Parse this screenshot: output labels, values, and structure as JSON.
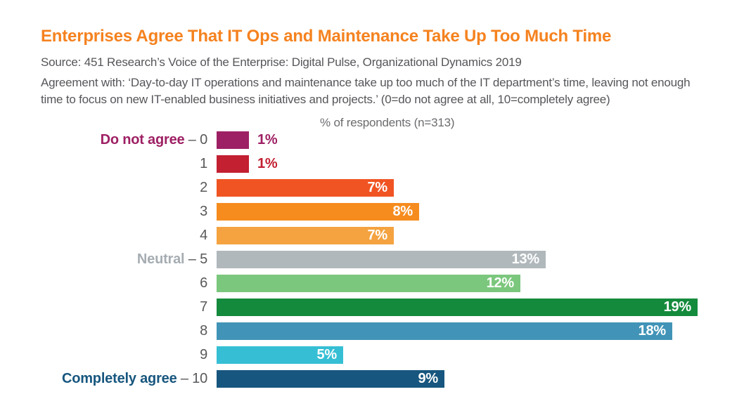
{
  "header": {
    "title": "Enterprises Agree That IT Ops and Maintenance Take Up Too Much Time",
    "source": "Source: 451 Research’s Voice of the Enterprise: Digital Pulse, Organizational Dynamics 2019",
    "description": "Agreement with: ‘Day-to-day IT operations and maintenance take up too much of the IT department’s time, leaving not enough time to focus on new IT-enabled business initiatives and projects.’ (0=do not agree at all, 10=completely agree)"
  },
  "colors": {
    "title": "#F5821F",
    "body_text": "#55565A",
    "axis_title": "#6B6C6F",
    "row_number_text": "#58595B",
    "value_label_inside": "#FFFFFF",
    "background": "#FFFFFF"
  },
  "chart_data": {
    "type": "bar",
    "orientation": "horizontal",
    "axis_title": "% of respondents (n=313)",
    "value_suffix": "%",
    "xlim": [
      0,
      19
    ],
    "grid": false,
    "legend": false,
    "categories": [
      "0",
      "1",
      "2",
      "3",
      "4",
      "5",
      "6",
      "7",
      "8",
      "9",
      "10"
    ],
    "values": [
      1,
      1,
      7,
      8,
      7,
      13,
      12,
      19,
      18,
      5,
      9
    ],
    "rows": [
      {
        "category": "0",
        "prefix": "Do not agree",
        "prefix_color": "#9E2064",
        "value": 1,
        "color": "#9E2064",
        "value_label_position": "outside"
      },
      {
        "category": "1",
        "prefix": null,
        "prefix_color": null,
        "value": 1,
        "color": "#C32032",
        "value_label_position": "outside"
      },
      {
        "category": "2",
        "prefix": null,
        "prefix_color": null,
        "value": 7,
        "color": "#F05423",
        "value_label_position": "inside"
      },
      {
        "category": "3",
        "prefix": null,
        "prefix_color": null,
        "value": 8,
        "color": "#F68C1E",
        "value_label_position": "inside"
      },
      {
        "category": "4",
        "prefix": null,
        "prefix_color": null,
        "value": 7,
        "color": "#F4A340",
        "value_label_position": "inside"
      },
      {
        "category": "5",
        "prefix": "Neutral",
        "prefix_color": "#A6ADB2",
        "value": 13,
        "color": "#B1B8BC",
        "value_label_position": "inside"
      },
      {
        "category": "6",
        "prefix": null,
        "prefix_color": null,
        "value": 12,
        "color": "#7BC77D",
        "value_label_position": "inside"
      },
      {
        "category": "7",
        "prefix": null,
        "prefix_color": null,
        "value": 19,
        "color": "#148A3D",
        "value_label_position": "inside"
      },
      {
        "category": "8",
        "prefix": null,
        "prefix_color": null,
        "value": 18,
        "color": "#4194B7",
        "value_label_position": "inside"
      },
      {
        "category": "9",
        "prefix": null,
        "prefix_color": null,
        "value": 5,
        "color": "#36BFD4",
        "value_label_position": "inside"
      },
      {
        "category": "10",
        "prefix": "Completely agree",
        "prefix_color": "#17567E",
        "value": 9,
        "color": "#17567E",
        "value_label_position": "inside"
      }
    ],
    "label_separator": " – "
  }
}
